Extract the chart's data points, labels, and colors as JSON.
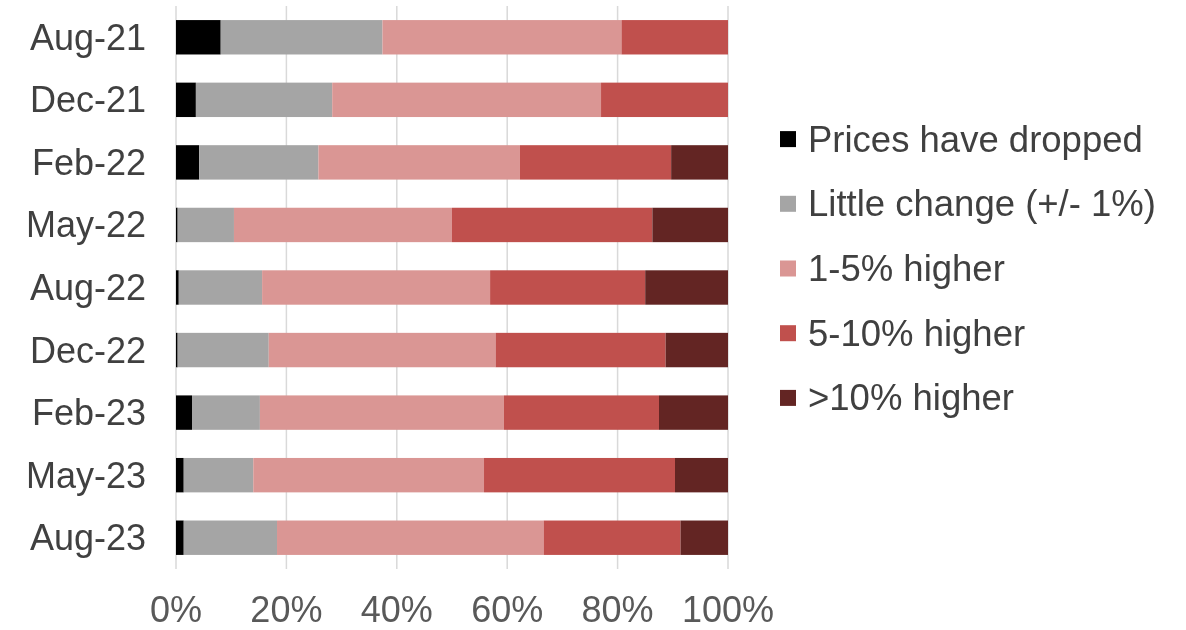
{
  "chart_data": {
    "type": "bar",
    "orientation": "horizontal",
    "stacked": true,
    "categories": [
      "Aug-21",
      "Dec-21",
      "Feb-22",
      "May-22",
      "Aug-22",
      "Dec-22",
      "Feb-23",
      "May-23",
      "Aug-23"
    ],
    "series": [
      {
        "name": "Prices have dropped",
        "color": "#000000",
        "values": [
          8.1,
          3.6,
          4.2,
          0.3,
          0.5,
          0.3,
          2.9,
          1.4,
          1.4
        ]
      },
      {
        "name": "Little change (+/- 1%)",
        "color": "#a5a5a5",
        "values": [
          29.3,
          24.7,
          21.6,
          10.2,
          15.1,
          16.5,
          12.3,
          12.6,
          16.9
        ]
      },
      {
        "name": "1-5% higher",
        "color": "#da9694",
        "values": [
          43.3,
          48.7,
          36.5,
          39.5,
          41.3,
          41.1,
          44.2,
          41.8,
          48.3
        ]
      },
      {
        "name": "5-10% higher",
        "color": "#c0504d",
        "values": [
          19.3,
          23.0,
          27.4,
          36.3,
          28.1,
          30.8,
          28.1,
          34.6,
          24.8
        ]
      },
      {
        "name": ">10% higher",
        "color": "#632523",
        "values": [
          null,
          null,
          10.3,
          13.7,
          15.0,
          11.3,
          12.5,
          9.6,
          8.6
        ]
      }
    ],
    "xlim": [
      0,
      100
    ],
    "xticks": [
      {
        "value": 0,
        "label": "0%"
      },
      {
        "value": 20,
        "label": "20%"
      },
      {
        "value": 40,
        "label": "40%"
      },
      {
        "value": 60,
        "label": "60%"
      },
      {
        "value": 80,
        "label": "80%"
      },
      {
        "value": 100,
        "label": "100%"
      }
    ],
    "grid": "x",
    "legend": "right"
  }
}
